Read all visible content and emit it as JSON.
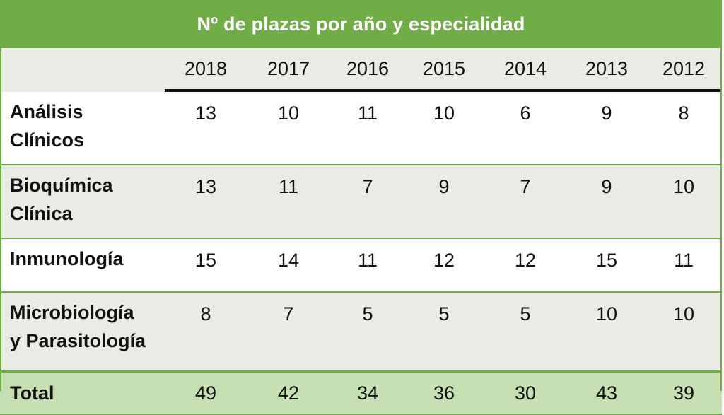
{
  "table": {
    "title": "Nº de plazas por año y especialidad",
    "years": [
      "2018",
      "2017",
      "2016",
      "2015",
      "2014",
      "2013",
      "2012"
    ],
    "rows": [
      {
        "label_lines": [
          "Análisis",
          "Clínicos"
        ],
        "values": [
          "13",
          "10",
          "11",
          "10",
          "6",
          "9",
          "8"
        ]
      },
      {
        "label_lines": [
          "Bioquímica",
          "Clínica"
        ],
        "values": [
          "13",
          "11",
          "7",
          "9",
          "7",
          "9",
          "10"
        ]
      },
      {
        "label_lines": [
          "Inmunología"
        ],
        "values": [
          "15",
          "14",
          "11",
          "12",
          "12",
          "15",
          "11"
        ]
      },
      {
        "label_lines": [
          "Microbiología",
          "y Parasitología"
        ],
        "values": [
          "8",
          "7",
          "5",
          "5",
          "5",
          "10",
          "10"
        ]
      }
    ],
    "total": {
      "label": "Total",
      "values": [
        "49",
        "42",
        "34",
        "36",
        "30",
        "43",
        "39"
      ]
    }
  }
}
